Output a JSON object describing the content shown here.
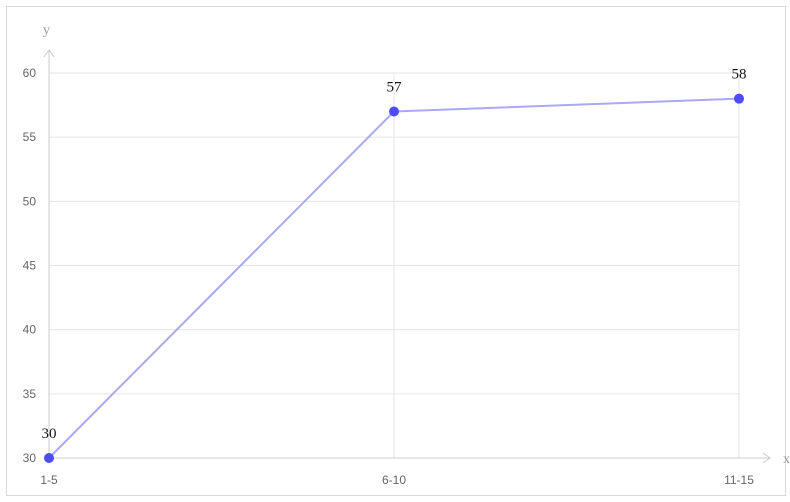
{
  "chart_data": {
    "type": "line",
    "categories": [
      "1-5",
      "6-10",
      "11-15"
    ],
    "series": [
      {
        "values": [
          30,
          57,
          58
        ]
      }
    ],
    "data_labels": [
      "30",
      "57",
      "58"
    ],
    "title": "",
    "xlabel": "x",
    "ylabel": "y",
    "ylim": [
      30,
      60
    ],
    "yticks": [
      30,
      35,
      40,
      45,
      50,
      55,
      60
    ],
    "ytick_labels": [
      "30",
      "35",
      "40",
      "45",
      "50",
      "55",
      "60"
    ],
    "grid": true,
    "legend": "none",
    "colors": {
      "line": "#a9a9f5",
      "marker": "#4d4dff",
      "grid": "#e6e6e6",
      "axis": "#cccccc"
    }
  }
}
